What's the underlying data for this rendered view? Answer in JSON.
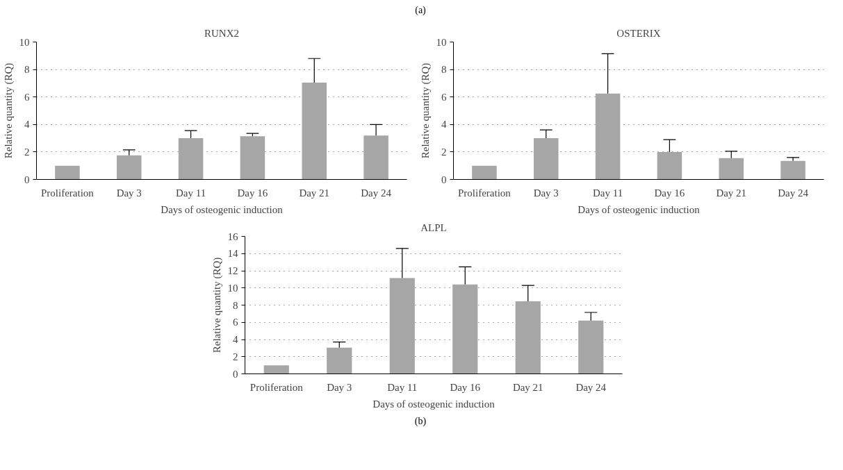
{
  "chart_data": [
    {
      "type": "bar",
      "title": "RUNX2",
      "xlabel": "Days of osteogenic induction",
      "ylabel": "Relative quantity (RQ)",
      "annotations": [
        "(a)"
      ],
      "categories": [
        "Proliferation",
        "Day 3",
        "Day 11",
        "Day 16",
        "Day 21",
        "Day 24"
      ],
      "values": [
        1,
        1.75,
        3.0,
        3.15,
        7.05,
        3.2
      ],
      "color": "#a6a6a6",
      "errors": [
        null,
        [
          1.75,
          2.15
        ],
        [
          3.0,
          3.55
        ],
        [
          3.15,
          3.35
        ],
        [
          7.05,
          8.8
        ],
        [
          3.2,
          4.0
        ]
      ],
      "ylim": [
        0,
        10
      ],
      "yticks": [
        0,
        2,
        4,
        6,
        8,
        10
      ],
      "grid": "y"
    },
    {
      "type": "bar",
      "title": "OSTERIX",
      "xlabel": "Days of osteogenic induction",
      "ylabel": "Relative quantity (RQ)",
      "categories": [
        "Proliferation",
        "Day 3",
        "Day 11",
        "Day 16",
        "Day 21",
        "Day 24"
      ],
      "values": [
        1,
        3.0,
        6.25,
        2.0,
        1.55,
        1.35
      ],
      "color": "#a6a6a6",
      "errors": [
        null,
        [
          3.0,
          3.6
        ],
        [
          6.25,
          9.15
        ],
        [
          2.0,
          2.9
        ],
        [
          1.55,
          2.05
        ],
        [
          1.35,
          1.6
        ]
      ],
      "ylim": [
        0,
        10
      ],
      "yticks": [
        0,
        2,
        4,
        6,
        8,
        10
      ],
      "grid": "y"
    },
    {
      "type": "bar",
      "title": "ALPL",
      "xlabel": "Days of osteogenic induction",
      "ylabel": "Relative quantity (RQ)",
      "annotations": [
        "(b)"
      ],
      "categories": [
        "Proliferation",
        "Day 3",
        "Day 11",
        "Day 16",
        "Day 21",
        "Day 24"
      ],
      "values": [
        1,
        3.05,
        11.15,
        10.4,
        8.45,
        6.2
      ],
      "color": "#a6a6a6",
      "errors": [
        null,
        [
          3.05,
          3.7
        ],
        [
          11.15,
          14.6
        ],
        [
          10.4,
          12.45
        ],
        [
          8.45,
          10.3
        ],
        [
          6.2,
          7.15
        ]
      ],
      "ylim": [
        0,
        16
      ],
      "yticks": [
        0,
        2,
        4,
        6,
        8,
        10,
        12,
        14,
        16
      ],
      "grid": "y"
    }
  ]
}
